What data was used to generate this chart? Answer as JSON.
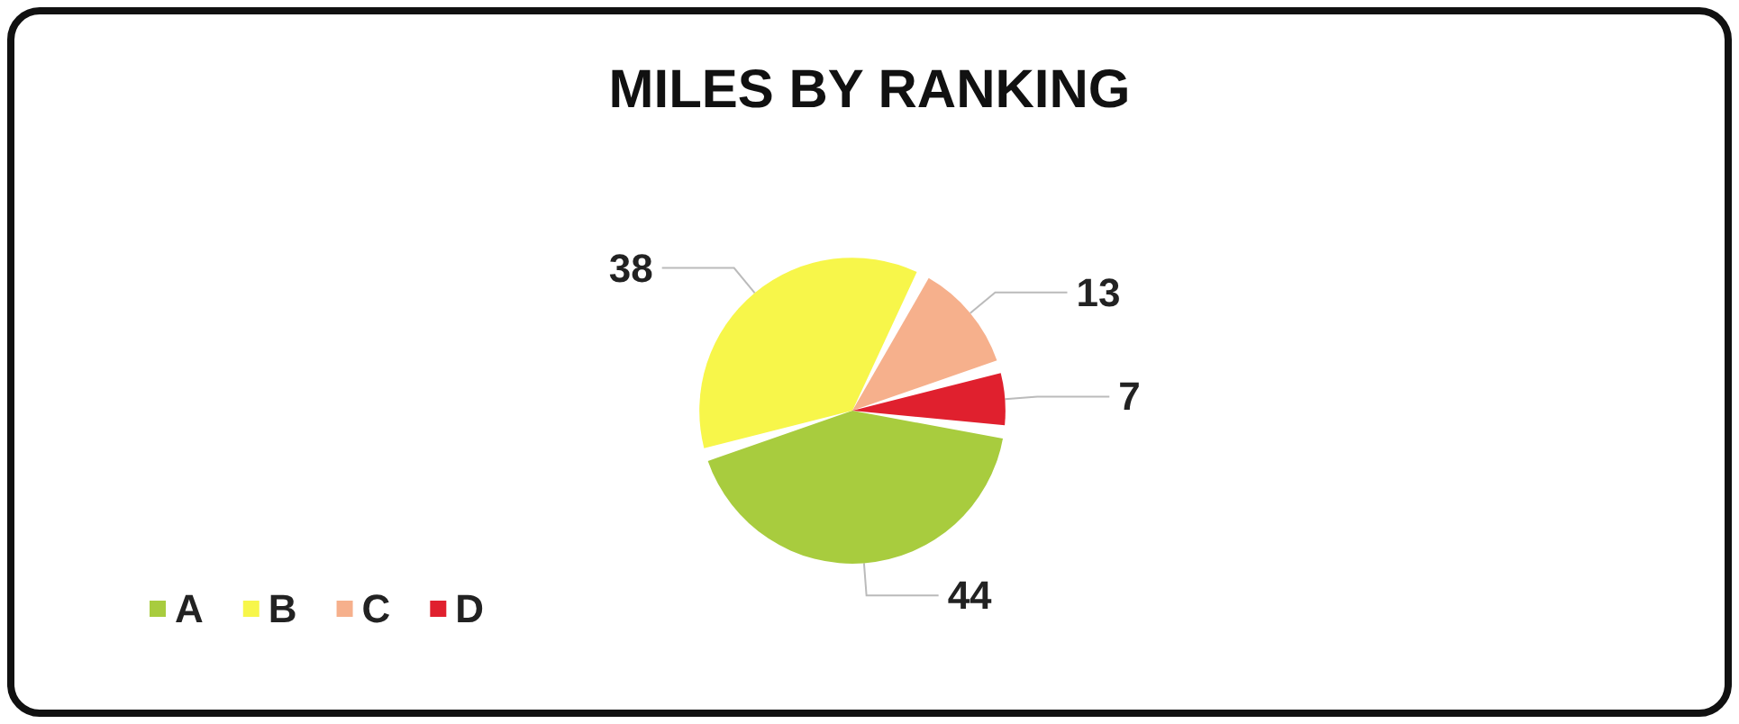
{
  "chart_data": {
    "type": "pie",
    "title": "MILES BY RANKING",
    "categories": [
      "A",
      "B",
      "C",
      "D"
    ],
    "values": [
      44,
      38,
      13,
      7
    ],
    "colors": [
      "#a8cc3e",
      "#f7f64a",
      "#f6b08c",
      "#e0202e"
    ],
    "data_labels": true,
    "legend": "bottom left"
  }
}
